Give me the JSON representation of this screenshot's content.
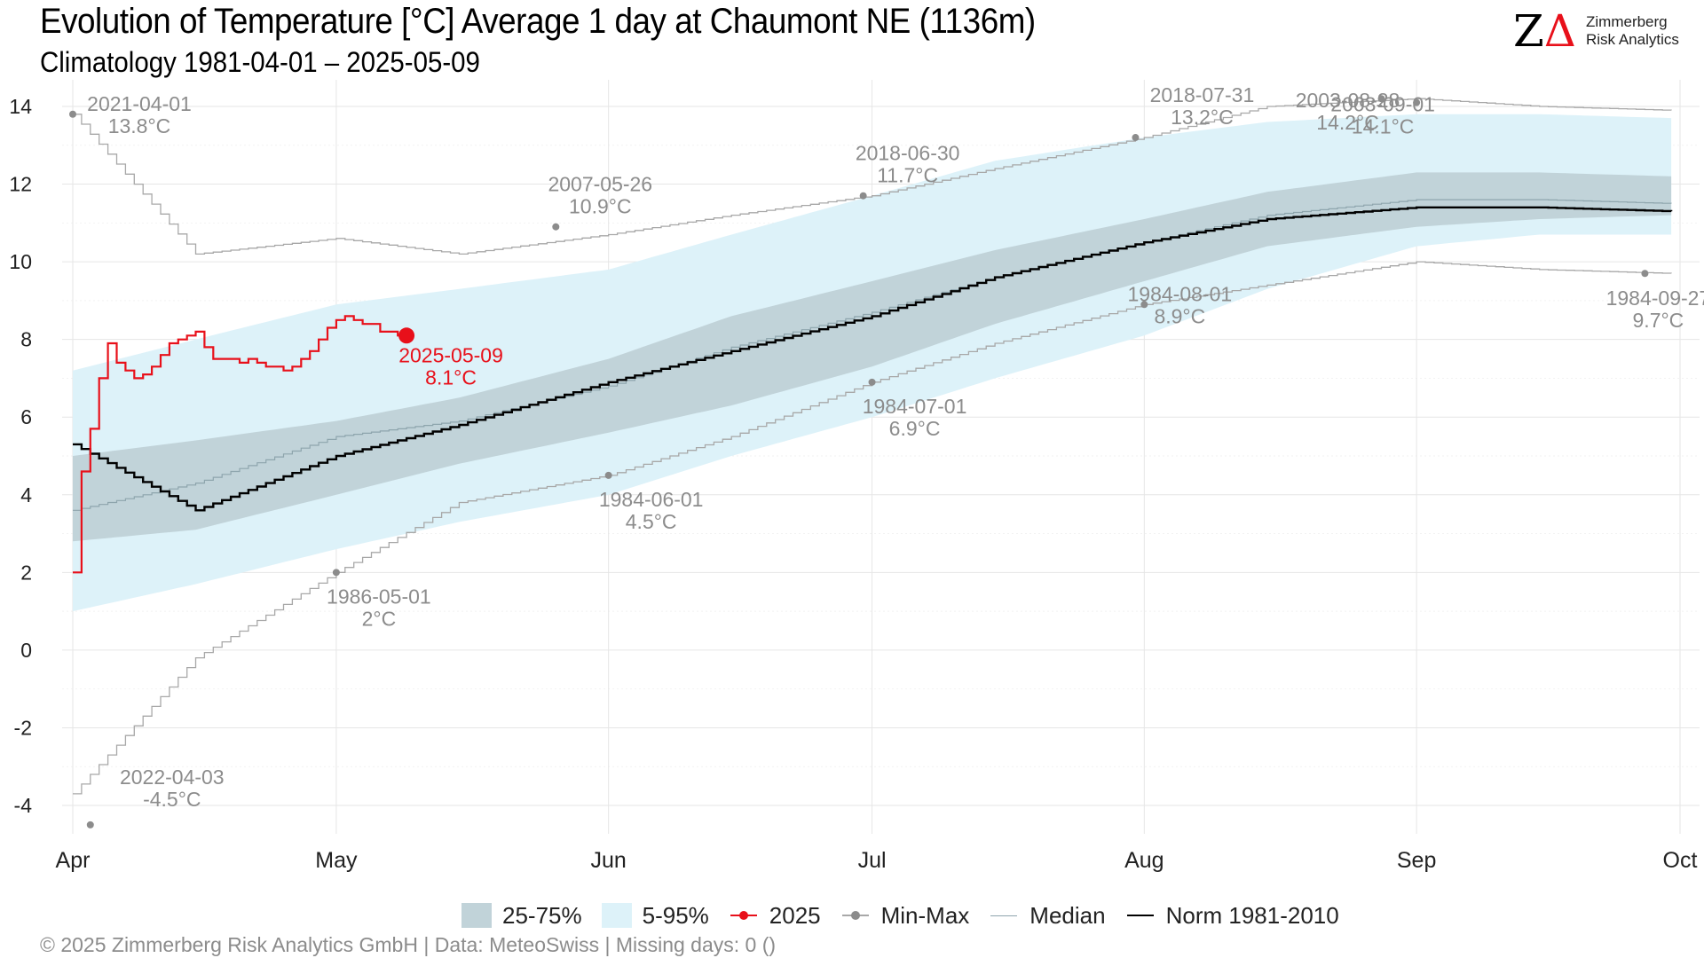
{
  "header": {
    "title": "Evolution of Temperature [°C] Average 1 day at Chaumont  NE (1136m)",
    "subtitle": "Climatology 1981-04-01 – 2025-05-09"
  },
  "logo": {
    "line1": "Zimmerberg",
    "line2": "Risk Analytics",
    "mark_letter": "Z"
  },
  "legend": [
    {
      "label": "25-75%",
      "kind": "band-iqr"
    },
    {
      "label": "5-95%",
      "kind": "band-outer"
    },
    {
      "label": "2025",
      "kind": "line-dot-red"
    },
    {
      "label": "Min-Max",
      "kind": "line-dot-gray"
    },
    {
      "label": "Median",
      "kind": "line-thin-gray"
    },
    {
      "label": "Norm 1981-2010",
      "kind": "line-black"
    }
  ],
  "footer": {
    "text": "©  2025 Zimmerberg Risk Analytics GmbH | Data: MeteoSwiss | Missing days: 0 ()"
  },
  "colors": {
    "current": "#e8101a",
    "minmax": "#a8a8a8",
    "median": "#8ea5ad",
    "norm": "#000000",
    "iqr": "#c1d3d9",
    "outer": "#ddf2f9",
    "annotation": "#8c8c8c"
  },
  "chart_data": {
    "type": "line",
    "title": "Evolution of Temperature [°C] Average 1 day at Chaumont  NE (1136m)",
    "subtitle": "Climatology 1981-04-01 – 2025-05-09",
    "xlabel": "",
    "ylabel": "",
    "ylim": [
      -5,
      14.5
    ],
    "xlim": [
      "2025-04-01",
      "2025-10-01"
    ],
    "yticks": [
      -4,
      -2,
      0,
      2,
      4,
      6,
      8,
      10,
      12,
      14
    ],
    "xticks": [
      {
        "date": "2025-04-01",
        "label": "Apr"
      },
      {
        "date": "2025-05-01",
        "label": "May"
      },
      {
        "date": "2025-06-01",
        "label": "Jun"
      },
      {
        "date": "2025-07-01",
        "label": "Jul"
      },
      {
        "date": "2025-08-01",
        "label": "Aug"
      },
      {
        "date": "2025-09-01",
        "label": "Sep"
      },
      {
        "date": "2025-10-01",
        "label": "Oct"
      }
    ],
    "grid": true,
    "legend_position": "bottom",
    "x": [
      "04-01",
      "04-15",
      "05-01",
      "05-15",
      "06-01",
      "06-15",
      "07-01",
      "07-15",
      "08-01",
      "08-15",
      "09-01",
      "09-15",
      "09-30"
    ],
    "series": [
      {
        "name": "5-95%",
        "kind": "band",
        "low": [
          1.0,
          1.7,
          2.6,
          3.3,
          4.0,
          5.0,
          6.0,
          7.0,
          8.1,
          9.3,
          10.4,
          10.7,
          10.7
        ],
        "high": [
          7.2,
          8.0,
          8.9,
          9.3,
          9.8,
          10.7,
          11.7,
          12.6,
          13.2,
          13.6,
          13.8,
          13.8,
          13.7
        ]
      },
      {
        "name": "25-75%",
        "kind": "band",
        "low": [
          2.8,
          3.1,
          4.0,
          4.8,
          5.6,
          6.3,
          7.3,
          8.4,
          9.5,
          10.4,
          10.9,
          11.1,
          11.2
        ],
        "high": [
          5.0,
          5.4,
          5.9,
          6.5,
          7.5,
          8.6,
          9.5,
          10.3,
          11.1,
          11.8,
          12.3,
          12.3,
          12.2
        ]
      },
      {
        "name": "Median",
        "kind": "line",
        "values": [
          3.6,
          4.3,
          5.5,
          5.9,
          6.8,
          7.8,
          8.7,
          9.6,
          10.5,
          11.2,
          11.6,
          11.6,
          11.5
        ]
      },
      {
        "name": "Norm 1981-2010",
        "kind": "line",
        "values": [
          5.3,
          3.6,
          5.0,
          5.8,
          6.9,
          7.7,
          8.6,
          9.6,
          10.5,
          11.1,
          11.4,
          11.4,
          11.3
        ]
      },
      {
        "name": "Min-Max",
        "kind": "line",
        "part": "max",
        "values": [
          13.8,
          10.2,
          10.6,
          10.2,
          10.7,
          11.2,
          11.7,
          12.4,
          13.2,
          14.0,
          14.2,
          14.0,
          13.9
        ]
      },
      {
        "name": "Min-Max",
        "kind": "line",
        "part": "min",
        "values": [
          -3.7,
          -0.2,
          2.0,
          3.8,
          4.5,
          5.5,
          6.9,
          7.9,
          8.9,
          9.4,
          10.0,
          9.8,
          9.7
        ]
      },
      {
        "name": "2025",
        "kind": "line",
        "x": [
          "04-01",
          "04-02",
          "04-03",
          "04-04",
          "04-05",
          "04-06",
          "04-07",
          "04-08",
          "04-09",
          "04-10",
          "04-11",
          "04-12",
          "04-13",
          "04-14",
          "04-15",
          "04-16",
          "04-17",
          "04-18",
          "04-19",
          "04-20",
          "04-21",
          "04-22",
          "04-23",
          "04-24",
          "04-25",
          "04-26",
          "04-27",
          "04-28",
          "04-29",
          "04-30",
          "05-01",
          "05-02",
          "05-03",
          "05-04",
          "05-05",
          "05-06",
          "05-07",
          "05-08",
          "05-09"
        ],
        "values": [
          2.0,
          4.6,
          5.7,
          7.0,
          7.9,
          7.4,
          7.2,
          7.0,
          7.1,
          7.3,
          7.6,
          7.9,
          8.0,
          8.1,
          8.2,
          7.8,
          7.5,
          7.5,
          7.5,
          7.4,
          7.5,
          7.4,
          7.3,
          7.3,
          7.2,
          7.3,
          7.5,
          7.7,
          8.0,
          8.3,
          8.5,
          8.6,
          8.5,
          8.4,
          8.4,
          8.2,
          8.2,
          8.1,
          8.1
        ]
      }
    ],
    "annotations": [
      {
        "date": "2025-04-01",
        "value": 13.8,
        "label_date": "2021-04-01",
        "label_value": "13.8°C",
        "series": "Min-Max"
      },
      {
        "date": "2025-04-03",
        "value": -4.5,
        "label_date": "2022-04-03",
        "label_value": "-4.5°C",
        "series": "Min-Max"
      },
      {
        "date": "2025-05-01",
        "value": 2.0,
        "label_date": "1986-05-01",
        "label_value": "2°C",
        "series": "Min-Max"
      },
      {
        "date": "2025-05-26",
        "value": 10.9,
        "label_date": "2007-05-26",
        "label_value": "10.9°C",
        "series": "Min-Max"
      },
      {
        "date": "2025-06-01",
        "value": 4.5,
        "label_date": "1984-06-01",
        "label_value": "4.5°C",
        "series": "Min-Max"
      },
      {
        "date": "2025-06-30",
        "value": 11.7,
        "label_date": "2018-06-30",
        "label_value": "11.7°C",
        "series": "Min-Max"
      },
      {
        "date": "2025-07-01",
        "value": 6.9,
        "label_date": "1984-07-01",
        "label_value": "6.9°C",
        "series": "Min-Max"
      },
      {
        "date": "2025-07-31",
        "value": 13.2,
        "label_date": "2018-07-31",
        "label_value": "13.2°C",
        "series": "Min-Max"
      },
      {
        "date": "2025-08-01",
        "value": 8.9,
        "label_date": "1984-08-01",
        "label_value": "8.9°C",
        "series": "Min-Max"
      },
      {
        "date": "2025-08-28",
        "value": 14.2,
        "label_date": "2003-08-28",
        "label_value": "14.2°C",
        "series": "Min-Max"
      },
      {
        "date": "2025-09-01",
        "value": 14.1,
        "label_date": "2003-09-01",
        "label_value": "14.1°C",
        "series": "Min-Max"
      },
      {
        "date": "2025-09-27",
        "value": 9.7,
        "label_date": "1984-09-27",
        "label_value": "9.7°C",
        "series": "Min-Max"
      },
      {
        "date": "2025-05-09",
        "value": 8.1,
        "label_date": "2025-05-09",
        "label_value": "8.1°C",
        "series": "2025"
      }
    ]
  }
}
